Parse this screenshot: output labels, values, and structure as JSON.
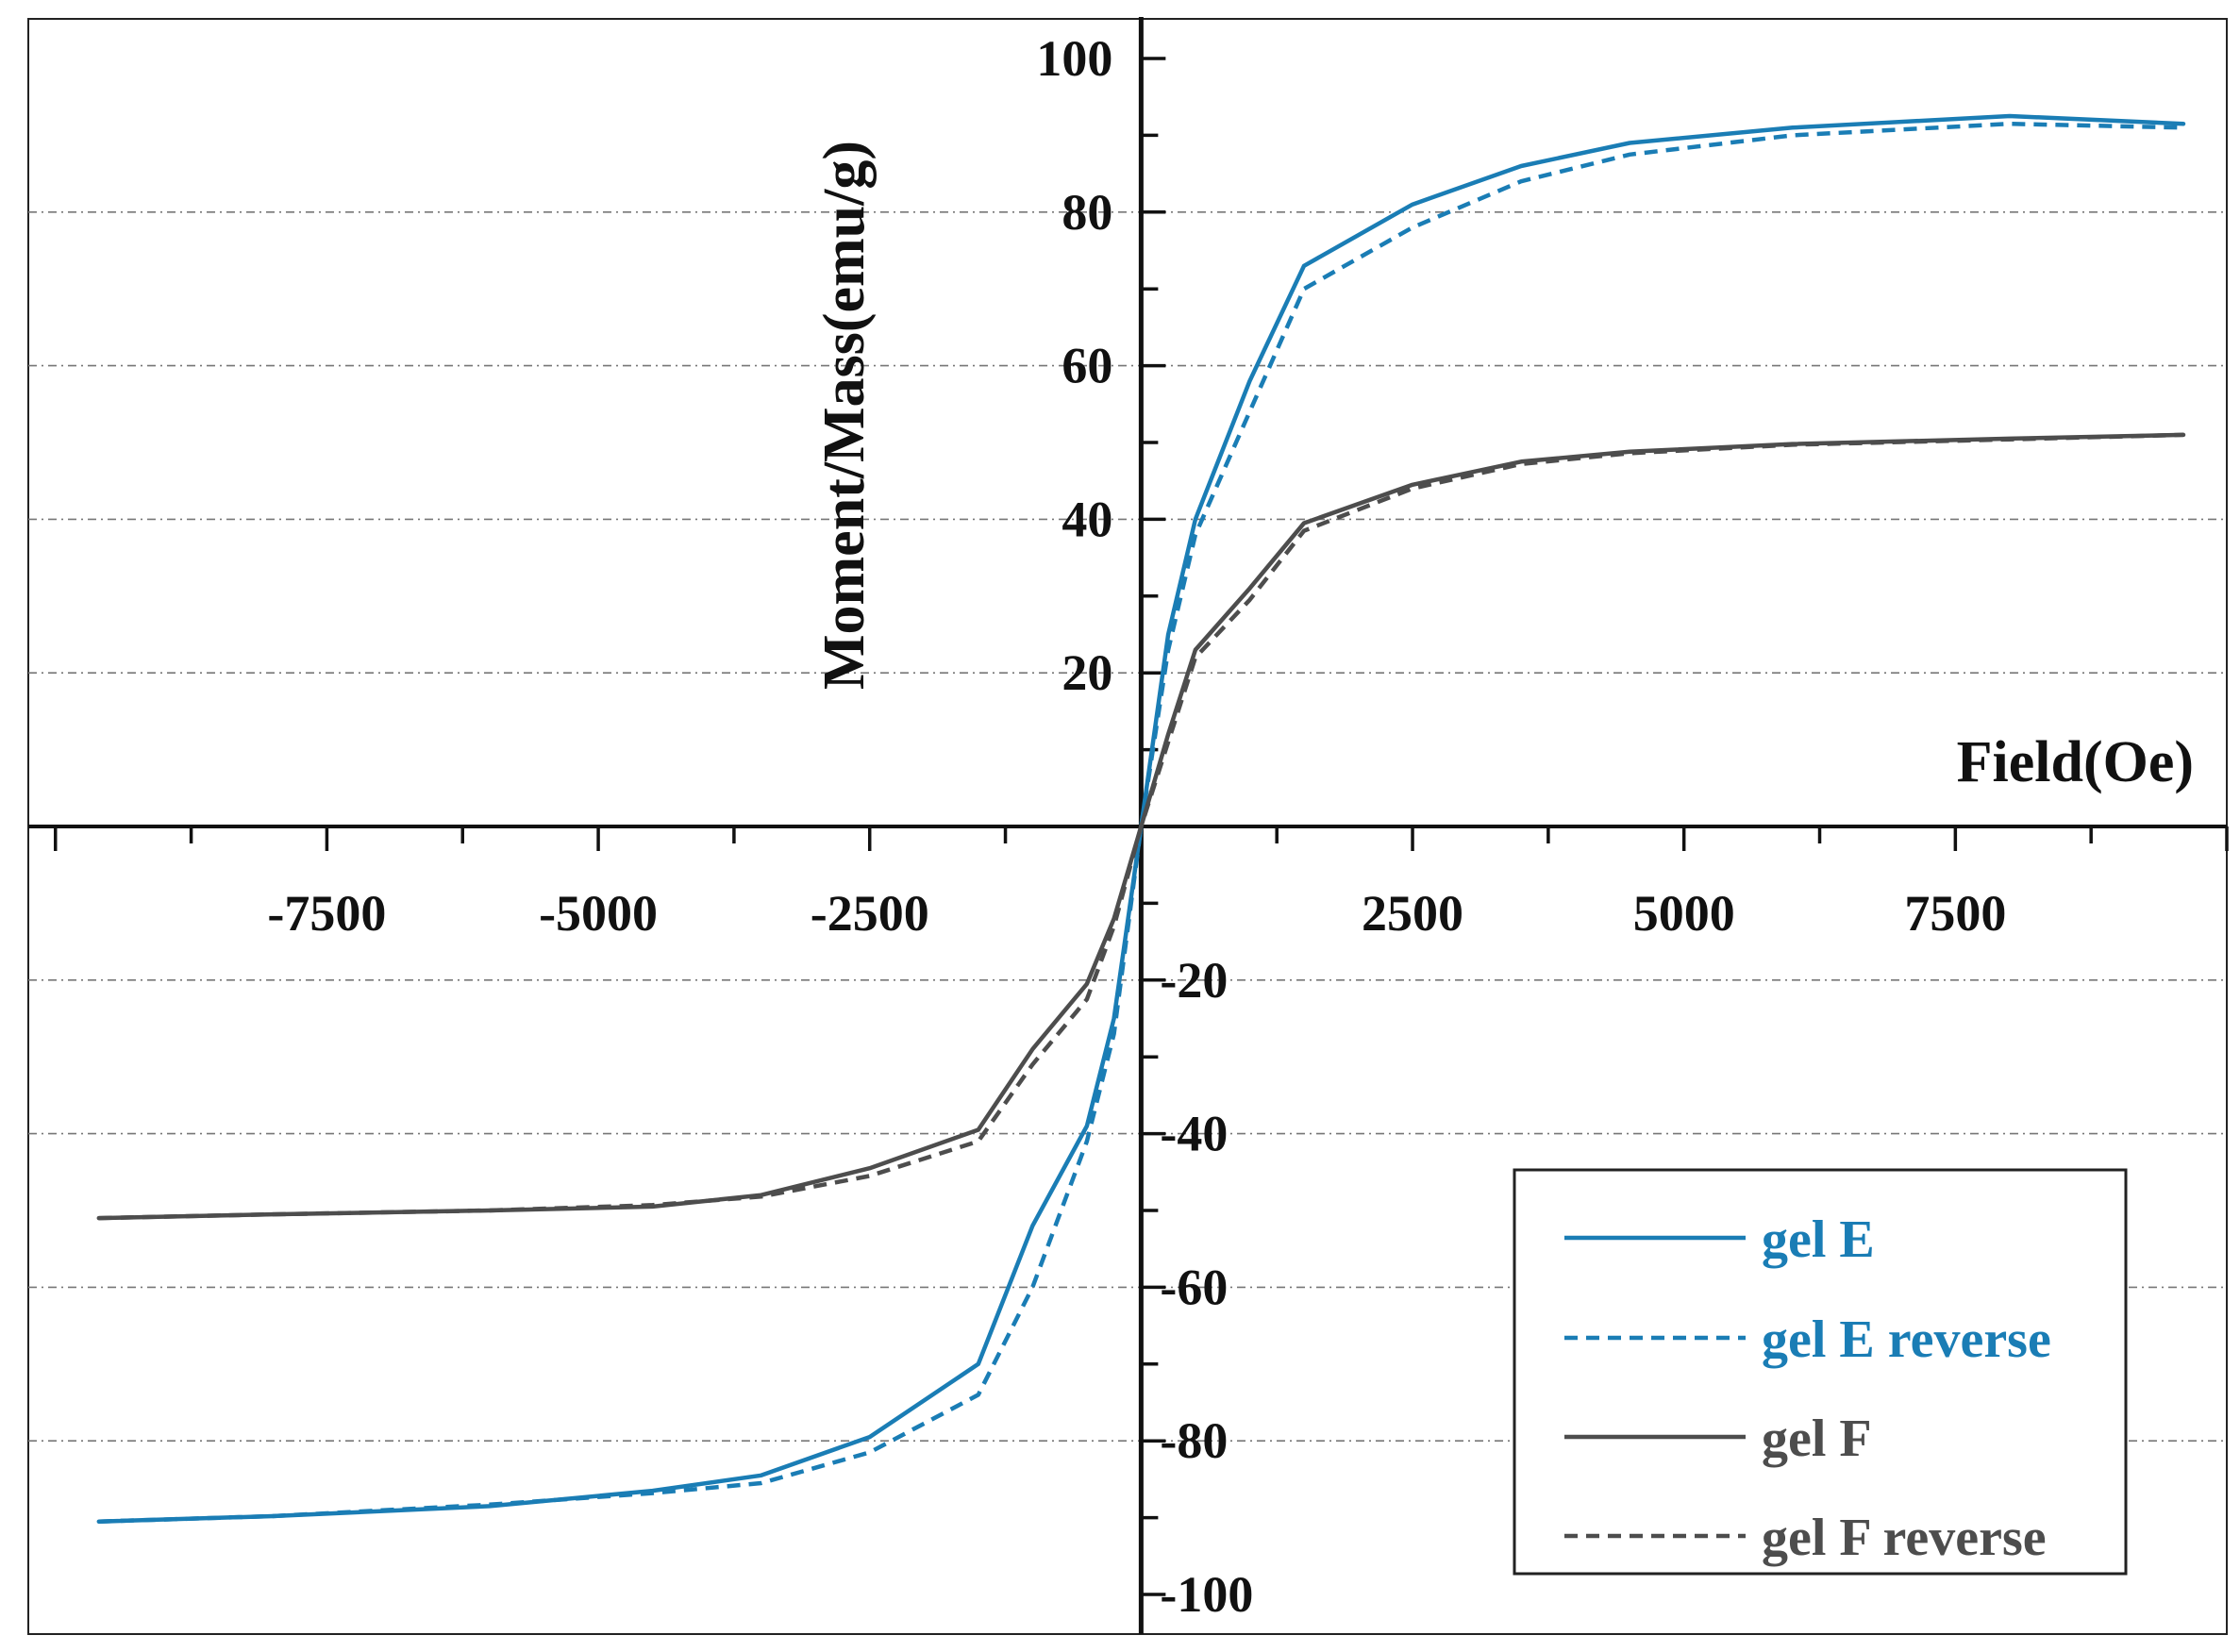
{
  "chart_data": {
    "type": "line",
    "title": "",
    "xlabel": "Field(Oe)",
    "ylabel": "Moment/Mass(emu/g)",
    "xlim": [
      -10250,
      10000
    ],
    "ylim": [
      -100,
      100
    ],
    "x_ticks": [
      {
        "value": -7500,
        "label": "-7500"
      },
      {
        "value": -5000,
        "label": "-5000"
      },
      {
        "value": -2500,
        "label": "-2500"
      },
      {
        "value": 2500,
        "label": "2500"
      },
      {
        "value": 5000,
        "label": "5000"
      },
      {
        "value": 7500,
        "label": "7500"
      }
    ],
    "y_ticks": [
      {
        "value": 100,
        "label": "100"
      },
      {
        "value": 80,
        "label": "80"
      },
      {
        "value": 60,
        "label": "60"
      },
      {
        "value": 40,
        "label": "40"
      },
      {
        "value": 20,
        "label": "20"
      },
      {
        "value": -20,
        "label": "-20"
      },
      {
        "value": -40,
        "label": "-40"
      },
      {
        "value": -60,
        "label": "-60"
      },
      {
        "value": -80,
        "label": "-80"
      },
      {
        "value": -100,
        "label": "-100"
      }
    ],
    "gridlines": [
      -80,
      -60,
      -40,
      -20,
      20,
      40,
      60,
      80
    ],
    "legend_position": "bottom-right",
    "series": [
      {
        "name": "gel E",
        "color": "#1a7db5",
        "dash": "solid",
        "points": [
          [
            -9600,
            -90.5
          ],
          [
            -8000,
            -89.8
          ],
          [
            -6000,
            -88.5
          ],
          [
            -4500,
            -86.5
          ],
          [
            -3500,
            -84.5
          ],
          [
            -2500,
            -79.5
          ],
          [
            -1500,
            -70
          ],
          [
            -1000,
            -52
          ],
          [
            -500,
            -39
          ],
          [
            -250,
            -25
          ],
          [
            0,
            0
          ],
          [
            250,
            25
          ],
          [
            500,
            40
          ],
          [
            1000,
            58
          ],
          [
            1500,
            73
          ],
          [
            2500,
            81
          ],
          [
            3500,
            86
          ],
          [
            4500,
            89
          ],
          [
            6000,
            91
          ],
          [
            8000,
            92.5
          ],
          [
            9600,
            91.5
          ]
        ]
      },
      {
        "name": "gel E reverse",
        "color": "#1a7db5",
        "dash": "dashed",
        "points": [
          [
            -9600,
            -90.5
          ],
          [
            -8000,
            -89.8
          ],
          [
            -6000,
            -88.3
          ],
          [
            -4500,
            -86.8
          ],
          [
            -3500,
            -85.5
          ],
          [
            -2500,
            -81.5
          ],
          [
            -1500,
            -74
          ],
          [
            -1000,
            -60
          ],
          [
            -500,
            -41
          ],
          [
            -250,
            -27
          ],
          [
            0,
            0
          ],
          [
            250,
            23
          ],
          [
            500,
            38
          ],
          [
            1000,
            54
          ],
          [
            1500,
            70
          ],
          [
            2500,
            78
          ],
          [
            3500,
            84
          ],
          [
            4500,
            87.5
          ],
          [
            6000,
            90
          ],
          [
            8000,
            91.5
          ],
          [
            9600,
            91
          ]
        ]
      },
      {
        "name": "gel F",
        "color": "#4d4d4d",
        "dash": "solid",
        "points": [
          [
            -9600,
            -51
          ],
          [
            -8000,
            -50.5
          ],
          [
            -6000,
            -50
          ],
          [
            -4500,
            -49.5
          ],
          [
            -3500,
            -48
          ],
          [
            -2500,
            -44.5
          ],
          [
            -1500,
            -39.5
          ],
          [
            -1000,
            -29
          ],
          [
            -500,
            -20.5
          ],
          [
            -250,
            -12
          ],
          [
            0,
            0
          ],
          [
            250,
            12
          ],
          [
            500,
            23
          ],
          [
            1000,
            31
          ],
          [
            1500,
            39.5
          ],
          [
            2500,
            44.5
          ],
          [
            3500,
            47.5
          ],
          [
            4500,
            48.8
          ],
          [
            6000,
            49.8
          ],
          [
            8000,
            50.5
          ],
          [
            9600,
            51
          ]
        ]
      },
      {
        "name": "gel F reverse",
        "color": "#4d4d4d",
        "dash": "dashed",
        "points": [
          [
            -9600,
            -51
          ],
          [
            -8000,
            -50.5
          ],
          [
            -6000,
            -50
          ],
          [
            -4500,
            -49.3
          ],
          [
            -3500,
            -48.2
          ],
          [
            -2500,
            -45.5
          ],
          [
            -1500,
            -41
          ],
          [
            -1000,
            -31
          ],
          [
            -500,
            -22.5
          ],
          [
            -250,
            -13
          ],
          [
            0,
            0
          ],
          [
            250,
            11
          ],
          [
            500,
            22
          ],
          [
            1000,
            29.5
          ],
          [
            1500,
            38.5
          ],
          [
            2500,
            44
          ],
          [
            3500,
            47.2
          ],
          [
            4500,
            48.6
          ],
          [
            6000,
            49.7
          ],
          [
            8000,
            50.4
          ],
          [
            9600,
            51
          ]
        ]
      }
    ]
  }
}
